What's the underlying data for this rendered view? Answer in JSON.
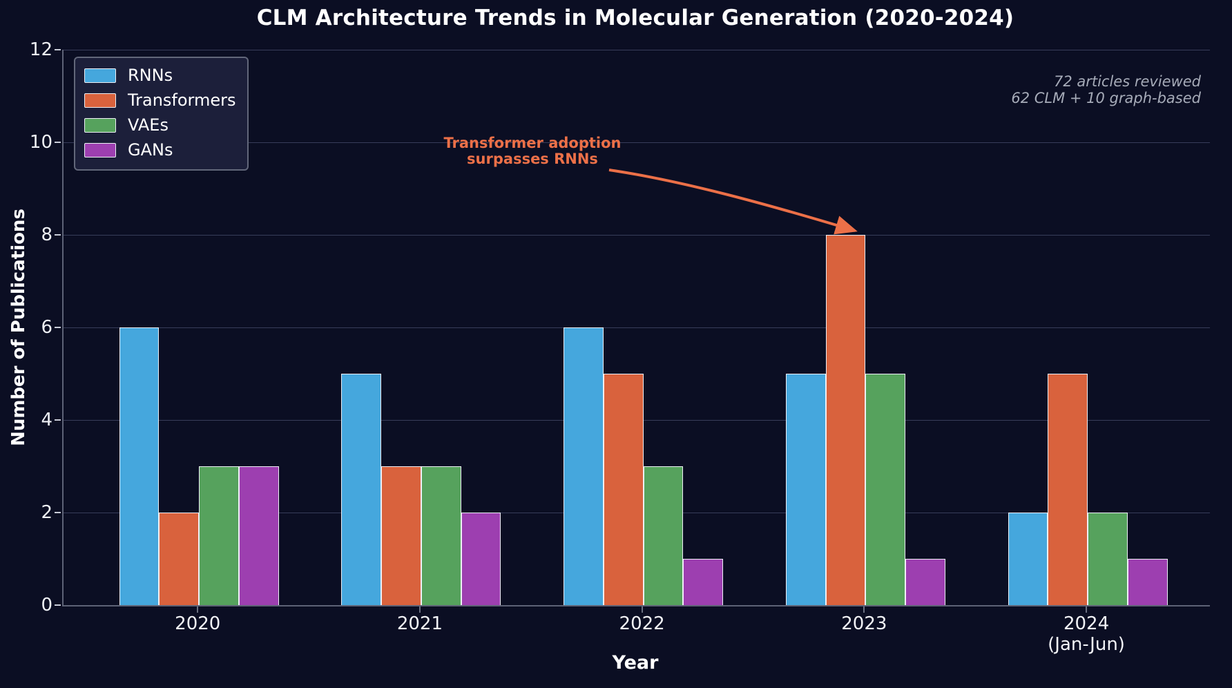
{
  "chart_data": {
    "type": "bar",
    "title": "CLM Architecture Trends in Molecular Generation (2020-2024)",
    "xlabel": "Year",
    "ylabel": "Number of Publications",
    "categories": [
      "2020",
      "2021",
      "2022",
      "2023",
      "2024"
    ],
    "category_sublabels": [
      "",
      "",
      "",
      "",
      "(Jan-Jun)"
    ],
    "series": [
      {
        "name": "RNNs",
        "color": "#45a7dd",
        "values": [
          6,
          5,
          6,
          5,
          2
        ]
      },
      {
        "name": "Transformers",
        "color": "#d9623d",
        "values": [
          2,
          3,
          5,
          8,
          5
        ]
      },
      {
        "name": "VAEs",
        "color": "#56a25d",
        "values": [
          3,
          3,
          3,
          5,
          2
        ]
      },
      {
        "name": "GANs",
        "color": "#9d3fb0",
        "values": [
          3,
          2,
          1,
          1,
          1
        ]
      }
    ],
    "ylim": [
      0,
      12
    ],
    "yticks": [
      0,
      2,
      4,
      6,
      8,
      10,
      12
    ],
    "grid": true,
    "legend_position": "upper left",
    "notes": [
      "72 articles reviewed",
      "62 CLM + 10 graph-based"
    ],
    "annotation": {
      "line1": "Transformer adoption",
      "line2": "surpasses RNNs",
      "color": "#ec7048",
      "target": {
        "series": "Transformers",
        "category": "2023",
        "value": 8
      }
    },
    "colors": {
      "background": "#0b0e23",
      "bar_edge": "#eef0f6",
      "grid": "#383d5a",
      "text": "#ffffff"
    }
  }
}
